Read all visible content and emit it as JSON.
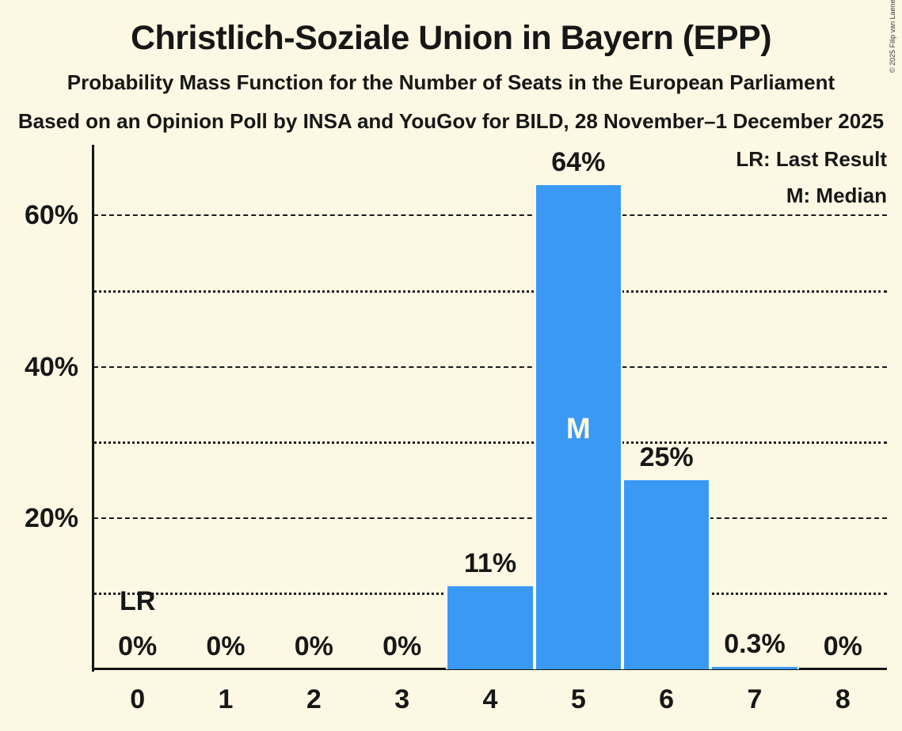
{
  "page": {
    "title": "Christlich-Soziale Union in Bayern (EPP)",
    "subtitle1": "Probability Mass Function for the Number of Seats in the European Parliament",
    "subtitle2": "Based on an Opinion Poll by INSA and YouGov for BILD, 28 November–1 December 2025",
    "copyright": "© 2025 Filip van Laenen",
    "background_color": "#FDF8E3",
    "text_color": "#171717"
  },
  "legend": {
    "lr": "LR: Last Result",
    "m": "M: Median"
  },
  "chart_data": {
    "type": "bar",
    "title": "Christlich-Soziale Union in Bayern (EPP)",
    "categories": [
      "0",
      "1",
      "2",
      "3",
      "4",
      "5",
      "6",
      "7",
      "8"
    ],
    "values": [
      0,
      0,
      0,
      0,
      11,
      64,
      25,
      0.3,
      0
    ],
    "bar_labels": [
      "0%",
      "0%",
      "0%",
      "0%",
      "11%",
      "64%",
      "25%",
      "0.3%",
      "0%"
    ],
    "xlabel": "",
    "ylabel": "",
    "ylim": [
      0,
      69.35
    ],
    "yticks": [
      {
        "value": 20,
        "label": "20%"
      },
      {
        "value": 40,
        "label": "40%"
      },
      {
        "value": 60,
        "label": "60%"
      }
    ],
    "gridlines_solid": [
      20,
      40,
      60
    ],
    "gridlines_dotted": [
      10,
      30,
      50
    ],
    "grid": true,
    "legend_position": "top-right",
    "legend_entries": [
      "LR: Last Result",
      "M: Median"
    ],
    "median_seats": "5",
    "median_marker": "M",
    "last_result_seats": "0",
    "last_result_marker": "LR",
    "bar_color": "#3B99F6",
    "median_text_color": "#FDF8E3"
  }
}
